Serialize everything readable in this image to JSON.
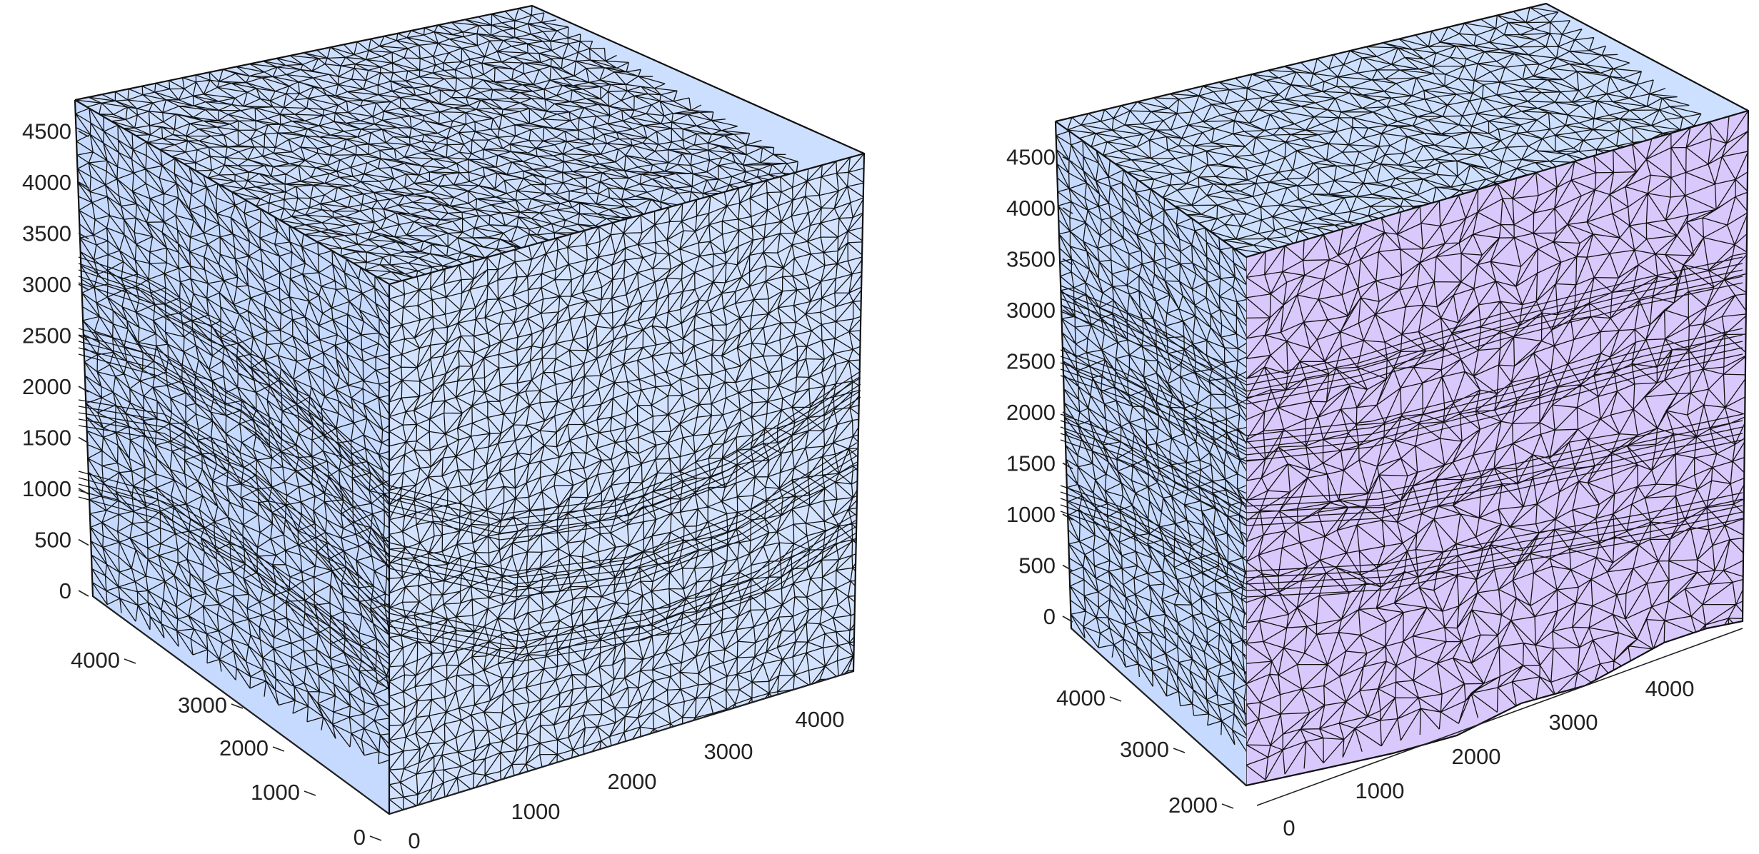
{
  "colors": {
    "blue_face": "#c9dcff",
    "blue_face_light": "#d6e4ff",
    "purple_face": "#d9c8fb",
    "mesh": "#111111",
    "text": "#222222"
  },
  "figures": [
    {
      "name": "full-mesh-cube",
      "axes": {
        "z_ticks": [
          "0",
          "500",
          "1000",
          "1500",
          "2000",
          "2500",
          "3000",
          "3500",
          "4000",
          "4500"
        ],
        "y_ticks": [
          "0",
          "1000",
          "2000",
          "3000",
          "4000"
        ],
        "x_ticks": [
          "0",
          "1000",
          "2000",
          "3000",
          "4000"
        ]
      }
    },
    {
      "name": "cut-mesh-cube",
      "axes": {
        "z_ticks": [
          "0",
          "500",
          "1000",
          "1500",
          "2000",
          "2500",
          "3000",
          "3500",
          "4000",
          "4500"
        ],
        "y_ticks": [
          "2000",
          "3000",
          "4000"
        ],
        "x_ticks": [
          "0",
          "1000",
          "2000",
          "3000",
          "4000"
        ]
      }
    }
  ]
}
